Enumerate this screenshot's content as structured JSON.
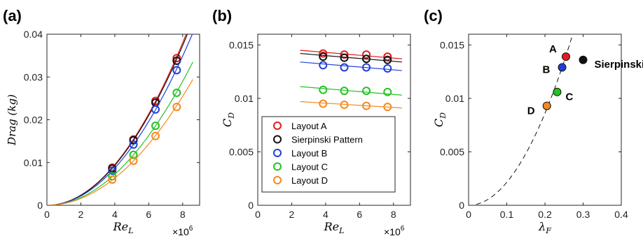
{
  "chart_data": [
    {
      "panel": "(a)",
      "type": "scatter",
      "xlabel": "Re_L",
      "ylabel": "Drag (kg)",
      "x_multiplier": "×10^6",
      "xlim": [
        0,
        9
      ],
      "ylim": [
        0,
        0.04
      ],
      "xticks": [
        "0",
        "2",
        "4",
        "6",
        "8"
      ],
      "yticks": [
        "0",
        "0.01",
        "0.02",
        "0.03",
        "0.04"
      ],
      "x": [
        3.85,
        5.1,
        6.4,
        7.65
      ],
      "series": [
        {
          "name": "Layout A",
          "color": "#e41a1c",
          "values": [
            0.0088,
            0.0154,
            0.0244,
            0.0344
          ],
          "fit_k": 0.000594
        },
        {
          "name": "Sierpinski Pattern",
          "color": "#111111",
          "values": [
            0.0086,
            0.0152,
            0.024,
            0.0338
          ],
          "fit_k": 0.000584
        },
        {
          "name": "Layout B",
          "color": "#1f3fd8",
          "values": [
            0.0081,
            0.0142,
            0.0224,
            0.0316
          ],
          "fit_k": 0.000545
        },
        {
          "name": "Layout C",
          "color": "#22c322",
          "values": [
            0.0068,
            0.0118,
            0.0186,
            0.0263
          ],
          "fit_k": 0.000453
        },
        {
          "name": "Layout D",
          "color": "#f5891f",
          "values": [
            0.006,
            0.0104,
            0.0162,
            0.023
          ],
          "fit_k": 0.000398
        }
      ]
    },
    {
      "panel": "(b)",
      "type": "scatter",
      "xlabel": "Re_L",
      "ylabel": "C_D",
      "x_multiplier": "×10^6",
      "xlim": [
        0,
        9
      ],
      "ylim": [
        0,
        0.016
      ],
      "xticks": [
        "0",
        "2",
        "4",
        "6",
        "8"
      ],
      "yticks": [
        "0",
        "0.005",
        "0.01",
        "0.015"
      ],
      "x": [
        3.85,
        5.1,
        6.4,
        7.65
      ],
      "fit_x_range": [
        2.5,
        8.5
      ],
      "series": [
        {
          "name": "Layout A",
          "color": "#e41a1c",
          "values": [
            0.0142,
            0.0141,
            0.0141,
            0.0139
          ],
          "fit": [
            0.0145,
            0.0137
          ]
        },
        {
          "name": "Sierpinski Pattern",
          "color": "#111111",
          "values": [
            0.0139,
            0.0138,
            0.0137,
            0.0136
          ],
          "fit": [
            0.0142,
            0.0134
          ]
        },
        {
          "name": "Layout B",
          "color": "#1f3fd8",
          "values": [
            0.0131,
            0.0129,
            0.0129,
            0.0128
          ],
          "fit": [
            0.0134,
            0.0126
          ]
        },
        {
          "name": "Layout C",
          "color": "#22c322",
          "values": [
            0.0108,
            0.0107,
            0.0107,
            0.0106
          ],
          "fit": [
            0.0111,
            0.0103
          ]
        },
        {
          "name": "Layout D",
          "color": "#f5891f",
          "values": [
            0.0095,
            0.0094,
            0.0093,
            0.0092
          ],
          "fit": [
            0.0097,
            0.0091
          ]
        }
      ],
      "legend": {
        "placement": "bottom-right",
        "entries": [
          "Layout A",
          "Sierpinski Pattern",
          "Layout B",
          "Layout C",
          "Layout D"
        ]
      }
    },
    {
      "panel": "(c)",
      "type": "scatter",
      "xlabel": "λ_F",
      "ylabel": "C_D",
      "xlim": [
        0,
        0.4
      ],
      "ylim": [
        0,
        0.016
      ],
      "xticks": [
        "0",
        "0.1",
        "0.2",
        "0.3",
        "0.4"
      ],
      "yticks": [
        "0",
        "0.005",
        "0.01",
        "0.015"
      ],
      "points": [
        {
          "label": "A",
          "x": 0.255,
          "y": 0.0139,
          "color": "#e41a1c"
        },
        {
          "label": "Sierpinski",
          "x": 0.3,
          "y": 0.0136,
          "color": "#111111"
        },
        {
          "label": "B",
          "x": 0.245,
          "y": 0.0129,
          "color": "#1f3fd8"
        },
        {
          "label": "C",
          "x": 0.232,
          "y": 0.0106,
          "color": "#22c322"
        },
        {
          "label": "D",
          "x": 0.205,
          "y": 0.0093,
          "color": "#f5891f"
        }
      ],
      "curve": {
        "style": "dashed",
        "fit_a": 0.215,
        "fit_p": 2,
        "x_range": [
          0.02,
          0.29
        ]
      }
    }
  ]
}
